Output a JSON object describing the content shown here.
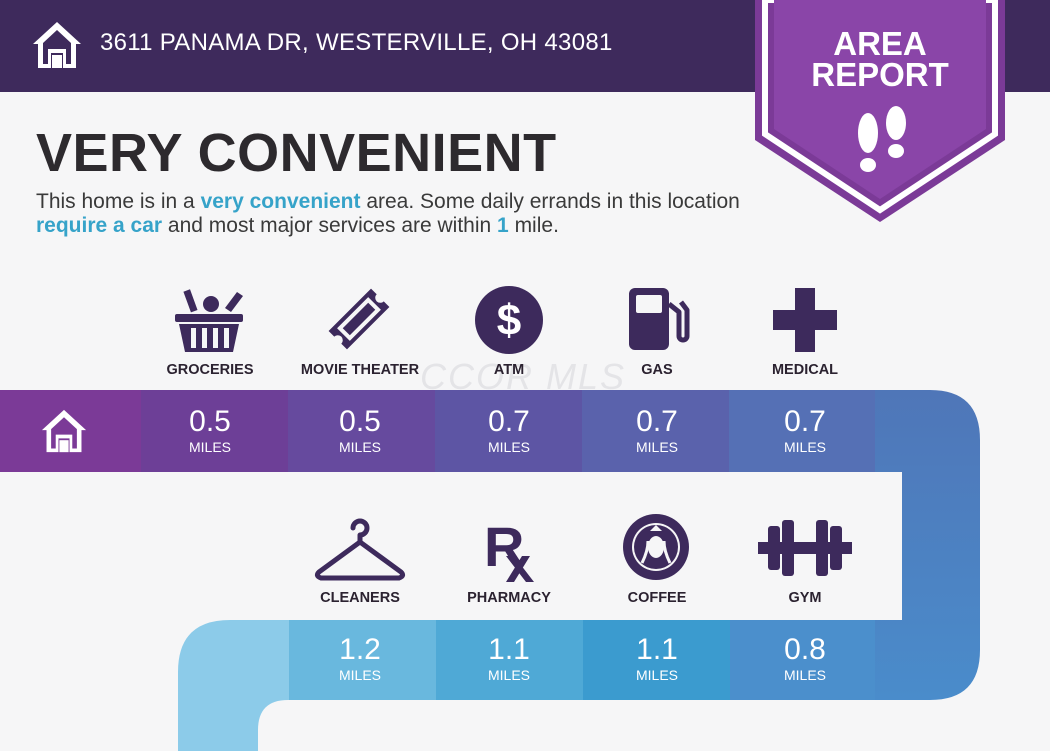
{
  "address": "3611 PANAMA DR, WESTERVILLE, OH 43081",
  "badge": {
    "line1": "AREA",
    "line2": "REPORT"
  },
  "headline": "VERY CONVENIENT",
  "description": {
    "p1": "This home is in a ",
    "hl1": "very convenient",
    "p2": " area. Some daily errands in this location ",
    "hl2": "require a car",
    "p3": " and most major services are within ",
    "hl3": "1",
    "p4": " mile."
  },
  "watermark": "CCOR MLS",
  "row1": [
    {
      "label": "GROCERIES",
      "value": "0.5",
      "unit": "MILES",
      "icon": "grocery-basket-icon"
    },
    {
      "label": "MOVIE THEATER",
      "value": "0.5",
      "unit": "MILES",
      "icon": "ticket-icon"
    },
    {
      "label": "ATM",
      "value": "0.7",
      "unit": "MILES",
      "icon": "dollar-icon"
    },
    {
      "label": "GAS",
      "value": "0.7",
      "unit": "MILES",
      "icon": "gas-pump-icon"
    },
    {
      "label": "MEDICAL",
      "value": "0.7",
      "unit": "MILES",
      "icon": "medical-cross-icon"
    }
  ],
  "row2": [
    {
      "label": "CLEANERS",
      "value": "1.2",
      "unit": "MILES",
      "icon": "hanger-icon"
    },
    {
      "label": "PHARMACY",
      "value": "1.1",
      "unit": "MILES",
      "icon": "rx-icon"
    },
    {
      "label": "COFFEE",
      "value": "1.1",
      "unit": "MILES",
      "icon": "coffee-logo-icon"
    },
    {
      "label": "GYM",
      "value": "0.8",
      "unit": "MILES",
      "icon": "dumbbell-icon"
    }
  ],
  "colors": {
    "header": "#3e2a5c",
    "badge": "#7b3a97",
    "accent_text": "#36a3c9",
    "icon_dark": "#3d2a5c"
  }
}
